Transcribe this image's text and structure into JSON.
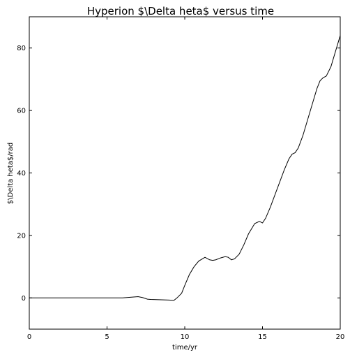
{
  "chart_data": {
    "type": "line",
    "title": "Hyperion $\\Delta heta$ versus time",
    "xlabel": "time/yr",
    "ylabel": "$\\Delta heta$/rad",
    "xlim": [
      0,
      20
    ],
    "ylim": [
      -10,
      90
    ],
    "xticks": [
      0,
      5,
      10,
      15,
      20
    ],
    "yticks": [
      0,
      20,
      40,
      60,
      80
    ],
    "grid": false,
    "legend": "none",
    "line_color": "#000000",
    "series": [
      {
        "x": [
          0,
          1,
          2,
          3,
          4,
          5,
          6,
          6.5,
          7.0,
          7.3,
          7.6,
          7.8,
          8.5,
          9.0,
          9.3,
          9.5,
          9.8,
          10.0,
          10.3,
          10.6,
          10.9,
          11.3,
          11.6,
          11.8,
          12.0,
          12.3,
          12.6,
          12.8,
          13.0,
          13.2,
          13.5,
          13.8,
          14.1,
          14.5,
          14.8,
          15.0,
          15.2,
          15.5,
          15.8,
          16.1,
          16.4,
          16.7,
          16.9,
          17.1,
          17.3,
          17.6,
          17.9,
          18.2,
          18.5,
          18.7,
          18.9,
          19.1,
          19.4,
          19.7,
          20.0
        ],
        "y": [
          0,
          0,
          0,
          0,
          0,
          0,
          0,
          0.2,
          0.4,
          0.1,
          -0.4,
          -0.5,
          -0.6,
          -0.7,
          -0.8,
          0.0,
          1.5,
          4.0,
          7.5,
          10.0,
          11.8,
          13.0,
          12.2,
          12.0,
          12.2,
          12.8,
          13.2,
          13.0,
          12.2,
          12.5,
          14.0,
          17.0,
          20.5,
          23.8,
          24.5,
          24.0,
          25.5,
          29.0,
          33.0,
          37.0,
          41.0,
          44.5,
          46.0,
          46.5,
          48.0,
          52.0,
          57.0,
          62.0,
          67.0,
          69.5,
          70.5,
          71.0,
          74.0,
          79.0,
          84.0
        ]
      }
    ]
  }
}
